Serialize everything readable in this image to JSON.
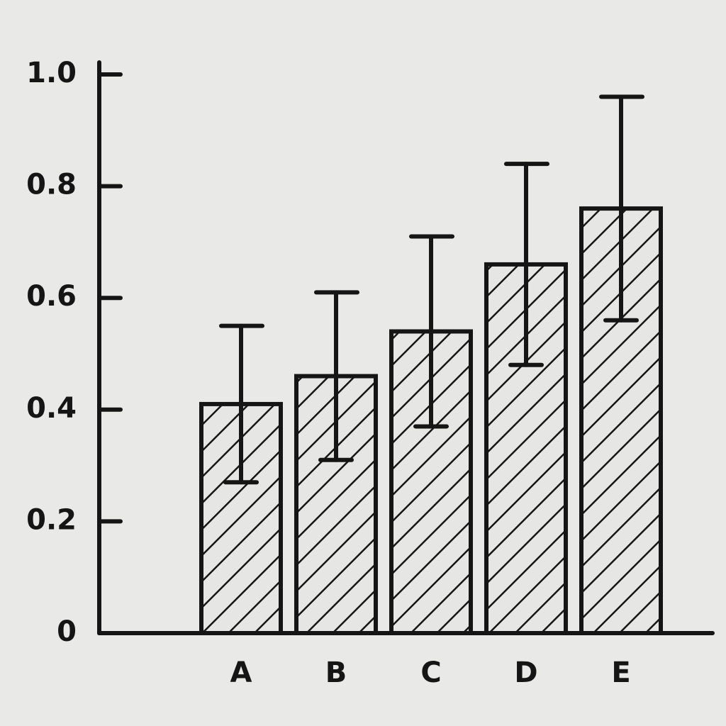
{
  "chart_data": {
    "type": "bar",
    "categories": [
      "A",
      "B",
      "C",
      "D",
      "E"
    ],
    "values": [
      0.41,
      0.46,
      0.54,
      0.66,
      0.76
    ],
    "errors": [
      0.14,
      0.15,
      0.17,
      0.18,
      0.2
    ],
    "color": "#151515",
    "hatch": true,
    "ylim": [
      0,
      1
    ],
    "yticks": [
      0,
      0.2,
      0.4,
      0.6,
      0.8,
      {
        "value": 1,
        "label": "1.0"
      }
    ]
  }
}
